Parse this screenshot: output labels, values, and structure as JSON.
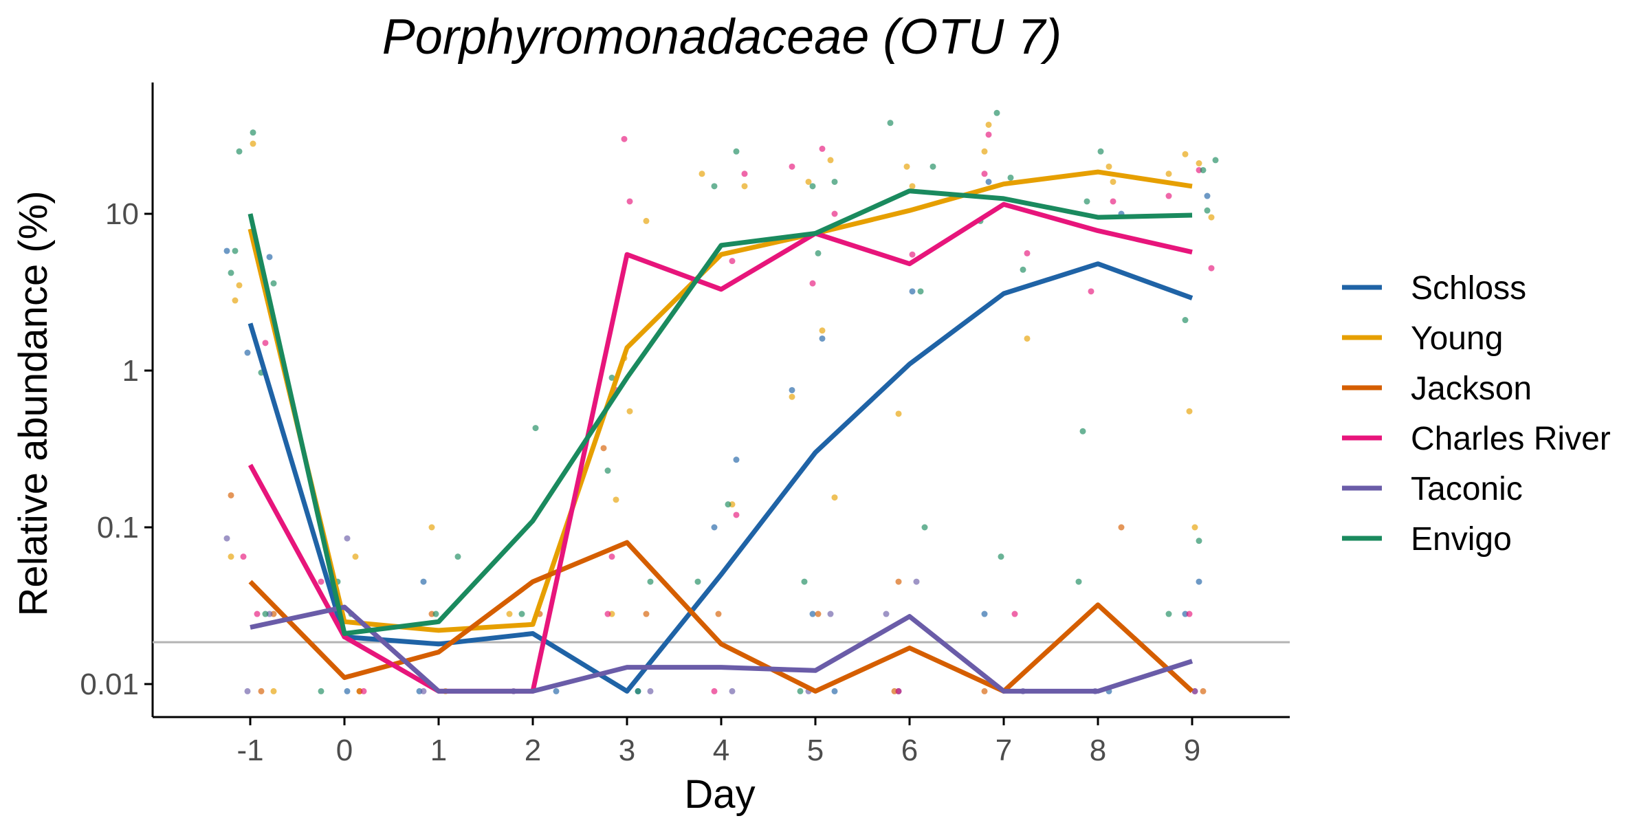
{
  "chart_data": {
    "type": "line",
    "title": "Porphyromonadaceae (OTU 7)",
    "xlabel": "Day",
    "ylabel": "Relative abundance (%)",
    "x": [
      -1,
      0,
      1,
      2,
      3,
      4,
      5,
      6,
      7,
      8,
      9
    ],
    "x_ticks": [
      "-1",
      "0",
      "1",
      "2",
      "3",
      "4",
      "5",
      "6",
      "7",
      "8",
      "9"
    ],
    "y_scale": "log10",
    "ylim": [
      0.006,
      70
    ],
    "y_ticks": [
      0.01,
      0.1,
      1,
      10
    ],
    "y_tick_labels": [
      "0.01",
      "0.1",
      "1",
      "10"
    ],
    "limit_of_detection": 0.0185,
    "legend_position": "right",
    "grid": false,
    "series": [
      {
        "name": "Schloss",
        "color": "#1f63a6",
        "values": [
          2.0,
          0.02,
          0.018,
          0.021,
          0.009,
          0.05,
          0.3,
          1.1,
          3.1,
          4.8,
          2.9
        ],
        "points": [
          [
            -1,
            5.8
          ],
          [
            -1,
            5.3
          ],
          [
            -1,
            1.3
          ],
          [
            0,
            0.009
          ],
          [
            0,
            0.028
          ],
          [
            1,
            0.045
          ],
          [
            1,
            0.009
          ],
          [
            2,
            0.009
          ],
          [
            3,
            0.009
          ],
          [
            4,
            0.27
          ],
          [
            4,
            0.1
          ],
          [
            5,
            1.6
          ],
          [
            5,
            0.75
          ],
          [
            5,
            0.009
          ],
          [
            5,
            0.028
          ],
          [
            6,
            3.2
          ],
          [
            6,
            0.009
          ],
          [
            7,
            16
          ],
          [
            7,
            0.028
          ],
          [
            8,
            10
          ],
          [
            8,
            0.009
          ],
          [
            9,
            13
          ],
          [
            9,
            0.028
          ],
          [
            9,
            0.045
          ]
        ]
      },
      {
        "name": "Young",
        "color": "#e69f00",
        "values": [
          8.0,
          0.025,
          0.022,
          0.024,
          1.4,
          5.5,
          7.5,
          10.5,
          15.5,
          18.5,
          15.0
        ],
        "points": [
          [
            -1,
            28
          ],
          [
            -1,
            3.5
          ],
          [
            -1,
            2.8
          ],
          [
            -1,
            0.065
          ],
          [
            -1,
            0.009
          ],
          [
            0,
            0.065
          ],
          [
            0,
            0.009
          ],
          [
            1,
            0.1
          ],
          [
            1,
            0.009
          ],
          [
            2,
            0.028
          ],
          [
            3,
            9
          ],
          [
            3,
            1.2
          ],
          [
            3,
            0.55
          ],
          [
            3,
            0.15
          ],
          [
            3,
            0.028
          ],
          [
            4,
            18
          ],
          [
            4,
            15
          ],
          [
            4,
            0.14
          ],
          [
            5,
            22
          ],
          [
            5,
            16
          ],
          [
            5,
            1.8
          ],
          [
            5,
            0.68
          ],
          [
            5,
            0.155
          ],
          [
            6,
            20
          ],
          [
            6,
            15
          ],
          [
            6,
            0.53
          ],
          [
            7,
            37
          ],
          [
            7,
            25
          ],
          [
            7,
            1.6
          ],
          [
            8,
            20
          ],
          [
            8,
            16
          ],
          [
            9,
            24
          ],
          [
            9,
            21
          ],
          [
            9,
            18
          ],
          [
            9,
            9.5
          ],
          [
            9,
            0.55
          ],
          [
            9,
            0.1
          ]
        ]
      },
      {
        "name": "Jackson",
        "color": "#d55e00",
        "values": [
          0.045,
          0.011,
          0.016,
          0.045,
          0.08,
          0.018,
          0.009,
          0.017,
          0.009,
          0.032,
          0.009
        ],
        "points": [
          [
            -1,
            0.16
          ],
          [
            -1,
            0.028
          ],
          [
            -1,
            0.009
          ],
          [
            0,
            0.009
          ],
          [
            1,
            0.028
          ],
          [
            2,
            0.028
          ],
          [
            3,
            0.32
          ],
          [
            3,
            0.028
          ],
          [
            4,
            0.028
          ],
          [
            5,
            0.028
          ],
          [
            6,
            0.045
          ],
          [
            6,
            0.009
          ],
          [
            7,
            0.009
          ],
          [
            8,
            0.1
          ],
          [
            9,
            0.009
          ]
        ]
      },
      {
        "name": "Charles River",
        "color": "#e7157b",
        "values": [
          0.25,
          0.02,
          0.009,
          0.009,
          5.5,
          3.3,
          7.5,
          4.8,
          11.5,
          7.8,
          5.7
        ],
        "points": [
          [
            -1,
            1.5
          ],
          [
            -1,
            0.065
          ],
          [
            -1,
            0.028
          ],
          [
            0,
            0.045
          ],
          [
            0,
            0.009
          ],
          [
            3,
            30
          ],
          [
            3,
            12
          ],
          [
            3,
            0.75
          ],
          [
            3,
            0.065
          ],
          [
            3,
            0.028
          ],
          [
            4,
            18
          ],
          [
            4,
            5
          ],
          [
            4,
            0.12
          ],
          [
            4,
            0.009
          ],
          [
            5,
            26
          ],
          [
            5,
            20
          ],
          [
            5,
            10
          ],
          [
            5,
            3.6
          ],
          [
            6,
            5.5
          ],
          [
            6,
            0.009
          ],
          [
            7,
            32
          ],
          [
            7,
            18
          ],
          [
            7,
            5.6
          ],
          [
            7,
            0.028
          ],
          [
            8,
            12
          ],
          [
            8,
            3.2
          ],
          [
            9,
            19
          ],
          [
            9,
            13
          ],
          [
            9,
            4.5
          ],
          [
            9,
            0.028
          ],
          [
            9,
            0.009
          ]
        ]
      },
      {
        "name": "Taconic",
        "color": "#6a5ca8",
        "values": [
          0.023,
          0.031,
          0.009,
          0.009,
          0.0128,
          0.0128,
          0.0122,
          0.027,
          0.009,
          0.009,
          0.014
        ],
        "points": [
          [
            -1,
            0.085
          ],
          [
            -1,
            0.028
          ],
          [
            -1,
            0.009
          ],
          [
            0,
            0.085
          ],
          [
            0,
            0.028
          ],
          [
            1,
            0.009
          ],
          [
            2,
            0.009
          ],
          [
            3,
            0.009
          ],
          [
            4,
            0.009
          ],
          [
            5,
            0.028
          ],
          [
            5,
            0.009
          ],
          [
            6,
            0.045
          ],
          [
            6,
            0.028
          ],
          [
            7,
            0.009
          ],
          [
            8,
            0.009
          ],
          [
            9,
            0.009
          ]
        ]
      },
      {
        "name": "Envigo",
        "color": "#1a8a5e",
        "values": [
          10.0,
          0.021,
          0.025,
          0.11,
          0.9,
          6.3,
          7.5,
          14.0,
          12.5,
          9.5,
          9.8
        ],
        "points": [
          [
            -1,
            33
          ],
          [
            -1,
            25
          ],
          [
            -1,
            5.8
          ],
          [
            -1,
            4.2
          ],
          [
            -1,
            3.6
          ],
          [
            -1,
            0.97
          ],
          [
            -1,
            0.028
          ],
          [
            0,
            0.045
          ],
          [
            0,
            0.028
          ],
          [
            0,
            0.009
          ],
          [
            1,
            0.065
          ],
          [
            1,
            0.028
          ],
          [
            2,
            0.43
          ],
          [
            2,
            0.028
          ],
          [
            3,
            0.9
          ],
          [
            3,
            0.23
          ],
          [
            3,
            0.045
          ],
          [
            3,
            0.009
          ],
          [
            4,
            25
          ],
          [
            4,
            15
          ],
          [
            4,
            0.14
          ],
          [
            4,
            0.045
          ],
          [
            5,
            16
          ],
          [
            5,
            15
          ],
          [
            5,
            5.6
          ],
          [
            5,
            0.045
          ],
          [
            5,
            0.009
          ],
          [
            6,
            38
          ],
          [
            6,
            20
          ],
          [
            6,
            3.2
          ],
          [
            6,
            0.1
          ],
          [
            7,
            44
          ],
          [
            7,
            17
          ],
          [
            7,
            9
          ],
          [
            7,
            4.4
          ],
          [
            7,
            0.065
          ],
          [
            8,
            25
          ],
          [
            8,
            12
          ],
          [
            8,
            0.41
          ],
          [
            8,
            0.045
          ],
          [
            9,
            22
          ],
          [
            9,
            19
          ],
          [
            9,
            10.5
          ],
          [
            9,
            2.1
          ],
          [
            9,
            0.082
          ],
          [
            9,
            0.028
          ]
        ]
      }
    ]
  }
}
